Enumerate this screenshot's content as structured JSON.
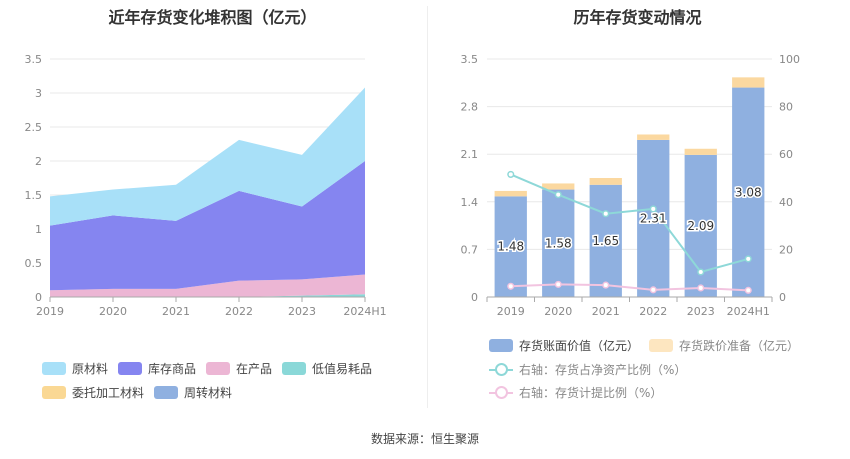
{
  "left_chart": {
    "title": "近年存货变化堆积图（亿元）",
    "legend": [
      {
        "label": "原材料",
        "color": "#a8e0f8"
      },
      {
        "label": "库存商品",
        "color": "#8585f0"
      },
      {
        "label": "在产品",
        "color": "#ecb6d4"
      },
      {
        "label": "低值易耗品",
        "color": "#8ad8d8"
      },
      {
        "label": "委托加工材料",
        "color": "#fad894"
      },
      {
        "label": "周转材料",
        "color": "#8fb0e0"
      }
    ]
  },
  "right_chart": {
    "title": "历年存货变动情况",
    "legend": [
      {
        "label": "存货账面价值（亿元）",
        "color": "#8fb0e0"
      },
      {
        "label": "存货跌价准备（亿元）",
        "color": "#fde6c0"
      },
      {
        "label": "右轴：存货占净资产比例（%）",
        "color": "#8ed8d8"
      },
      {
        "label": "右轴：存货计提比例（%）",
        "color": "#f2c4e0"
      }
    ]
  },
  "source": "数据来源：恒生聚源",
  "chart_data": [
    {
      "type": "area",
      "title": "近年存货变化堆积图（亿元）",
      "stacked": true,
      "categories": [
        "2019",
        "2020",
        "2021",
        "2022",
        "2023",
        "2024H1"
      ],
      "ylim": [
        0,
        3.5
      ],
      "yticks": [
        "0",
        "0.5",
        "1",
        "1.5",
        "2",
        "2.5",
        "3",
        "3.5"
      ],
      "grid": true,
      "legend_position": "bottom",
      "series": [
        {
          "name": "周转材料",
          "color": "#8fb0e0",
          "values": [
            0.0,
            0.0,
            0.0,
            0.0,
            0.0,
            0.0
          ]
        },
        {
          "name": "委托加工材料",
          "color": "#fad894",
          "values": [
            0.0,
            0.0,
            0.0,
            0.0,
            0.0,
            0.0
          ]
        },
        {
          "name": "低值易耗品",
          "color": "#8ad8d8",
          "values": [
            0.0,
            0.0,
            0.0,
            0.0,
            0.02,
            0.04
          ]
        },
        {
          "name": "在产品",
          "color": "#ecb6d4",
          "values": [
            0.1,
            0.12,
            0.12,
            0.24,
            0.24,
            0.29
          ]
        },
        {
          "name": "库存商品",
          "color": "#8585f0",
          "values": [
            0.95,
            1.08,
            1.0,
            1.32,
            1.07,
            1.67
          ]
        },
        {
          "name": "原材料",
          "color": "#a8e0f8",
          "values": [
            0.43,
            0.38,
            0.53,
            0.75,
            0.76,
            1.08
          ]
        }
      ]
    },
    {
      "type": "bar",
      "title": "历年存货变动情况",
      "stacked": true,
      "categories": [
        "2019",
        "2020",
        "2021",
        "2022",
        "2023",
        "2024H1"
      ],
      "ylim": [
        0,
        3.5
      ],
      "yticks": [
        "0",
        "0.7",
        "1.4",
        "2.1",
        "2.8",
        "3.5"
      ],
      "y2lim": [
        0,
        100
      ],
      "y2ticks": [
        "0",
        "20",
        "40",
        "60",
        "80",
        "100"
      ],
      "grid": true,
      "legend_position": "bottom",
      "series": [
        {
          "name": "存货账面价值（亿元）",
          "color": "#8fb0e0",
          "axis": "left",
          "values": [
            1.48,
            1.58,
            1.65,
            2.31,
            2.09,
            3.08
          ],
          "labels": [
            "1.48",
            "1.58",
            "1.65",
            "2.31",
            "2.09",
            "3.08"
          ]
        },
        {
          "name": "存货跌价准备（亿元）",
          "color": "#fde6c0",
          "axis": "left",
          "values": [
            0.08,
            0.09,
            0.1,
            0.08,
            0.09,
            0.15
          ]
        },
        {
          "name": "右轴：存货占净资产比例（%）",
          "type": "line",
          "color": "#8ed8d8",
          "axis": "right",
          "values": [
            51.5,
            43,
            35,
            37,
            10.5,
            16
          ]
        },
        {
          "name": "右轴：存货计提比例（%）",
          "type": "line",
          "color": "#f2c4e0",
          "axis": "right",
          "values": [
            4.5,
            5.3,
            5,
            3,
            3.8,
            2.8
          ]
        }
      ]
    }
  ]
}
